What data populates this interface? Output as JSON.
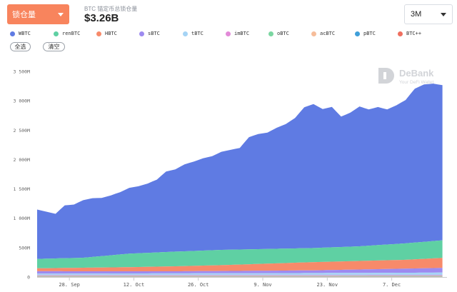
{
  "header": {
    "metric_dropdown": "锁仓量",
    "summary_caption": "BTC 锚定币总锁仓量",
    "summary_value": "$3.26B",
    "range_select": "3M"
  },
  "legend_buttons": {
    "select_all": "全选",
    "clear": "清空"
  },
  "watermark": {
    "title": "DeBank",
    "subtitle": "Your DeFi Wallet"
  },
  "colors": {
    "accent": "#f8845d"
  },
  "chart_data": {
    "type": "area",
    "stacked": true,
    "title": "",
    "xlabel": "",
    "ylabel": "",
    "ylim": [
      0,
      3500
    ],
    "y_ticks": [
      0,
      500,
      1000,
      1500,
      2000,
      2500,
      3000,
      3500
    ],
    "y_tick_labels": [
      "0",
      "500M",
      "1 000M",
      "1 500M",
      "2 000M",
      "2 500M",
      "3 000M",
      "3 500M"
    ],
    "x_tick_labels": [
      "28. Sep",
      "12. Oct",
      "26. Oct",
      "9. Nov",
      "23. Nov",
      "7. Dec"
    ],
    "x_tick_positions": [
      7,
      21,
      35,
      49,
      63,
      77
    ],
    "x_range": [
      0,
      89
    ],
    "grid": false,
    "legend_position": "top",
    "series": [
      {
        "name": "WBTC",
        "color": "#5f7be3",
        "points": [
          [
            0,
            840
          ],
          [
            2,
            800
          ],
          [
            4,
            760
          ],
          [
            6,
            900
          ],
          [
            8,
            910
          ],
          [
            10,
            980
          ],
          [
            12,
            1000
          ],
          [
            14,
            990
          ],
          [
            16,
            1020
          ],
          [
            18,
            1060
          ],
          [
            20,
            1120
          ],
          [
            22,
            1140
          ],
          [
            24,
            1180
          ],
          [
            26,
            1240
          ],
          [
            28,
            1370
          ],
          [
            30,
            1400
          ],
          [
            32,
            1480
          ],
          [
            34,
            1520
          ],
          [
            36,
            1570
          ],
          [
            38,
            1600
          ],
          [
            40,
            1670
          ],
          [
            42,
            1700
          ],
          [
            44,
            1730
          ],
          [
            46,
            1910
          ],
          [
            48,
            1960
          ],
          [
            50,
            1980
          ],
          [
            52,
            2060
          ],
          [
            54,
            2120
          ],
          [
            56,
            2220
          ],
          [
            58,
            2400
          ],
          [
            60,
            2450
          ],
          [
            62,
            2360
          ],
          [
            64,
            2390
          ],
          [
            66,
            2220
          ],
          [
            68,
            2280
          ],
          [
            70,
            2380
          ],
          [
            72,
            2320
          ],
          [
            74,
            2350
          ],
          [
            76,
            2300
          ],
          [
            78,
            2360
          ],
          [
            80,
            2440
          ],
          [
            82,
            2620
          ],
          [
            84,
            2680
          ],
          [
            86,
            2680
          ],
          [
            88,
            2640
          ]
        ]
      },
      {
        "name": "renBTC",
        "color": "#5fd0a3",
        "points": [
          [
            0,
            160
          ],
          [
            10,
            170
          ],
          [
            20,
            230
          ],
          [
            30,
            250
          ],
          [
            40,
            260
          ],
          [
            50,
            250
          ],
          [
            60,
            240
          ],
          [
            70,
            250
          ],
          [
            80,
            280
          ],
          [
            88,
            300
          ]
        ]
      },
      {
        "name": "HBTC",
        "color": "#f78a6a",
        "points": [
          [
            0,
            50
          ],
          [
            20,
            70
          ],
          [
            40,
            100
          ],
          [
            60,
            140
          ],
          [
            80,
            150
          ],
          [
            88,
            170
          ]
        ]
      },
      {
        "name": "sBTC",
        "color": "#9d8af0",
        "points": [
          [
            0,
            40
          ],
          [
            30,
            35
          ],
          [
            60,
            45
          ],
          [
            88,
            80
          ]
        ]
      },
      {
        "name": "tBTC",
        "color": "#a5d4f5",
        "points": [
          [
            0,
            25
          ],
          [
            44,
            30
          ],
          [
            88,
            40
          ]
        ]
      },
      {
        "name": "imBTC",
        "color": "#e28ad8",
        "points": [
          [
            0,
            12
          ],
          [
            88,
            12
          ]
        ]
      },
      {
        "name": "oBTC",
        "color": "#7bd6a1",
        "points": [
          [
            0,
            8
          ],
          [
            88,
            10
          ]
        ]
      },
      {
        "name": "acBTC",
        "color": "#f6bd9a",
        "points": [
          [
            0,
            6
          ],
          [
            88,
            6
          ]
        ]
      },
      {
        "name": "pBTC",
        "color": "#3f9fd9",
        "points": [
          [
            0,
            4
          ],
          [
            88,
            4
          ]
        ]
      },
      {
        "name": "BTC++",
        "color": "#ef6f5f",
        "points": [
          [
            0,
            3
          ],
          [
            88,
            3
          ]
        ]
      }
    ]
  }
}
